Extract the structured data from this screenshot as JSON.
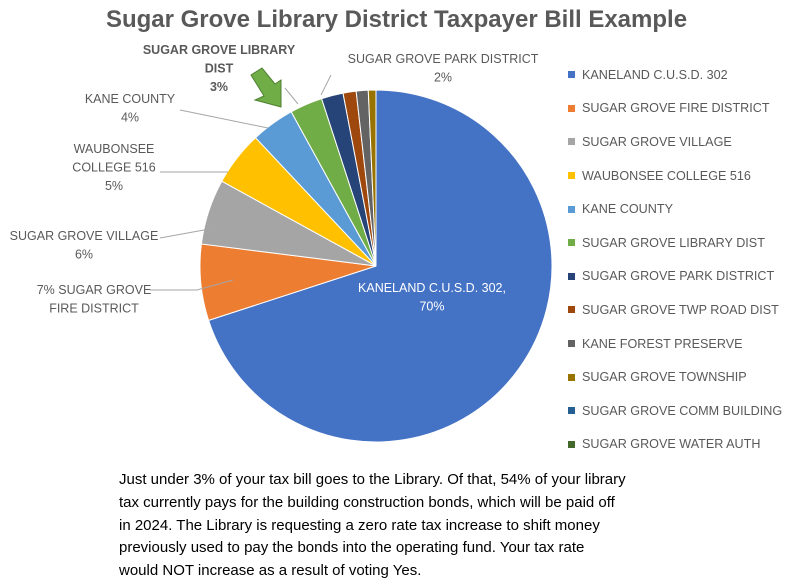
{
  "chart_data": {
    "type": "pie",
    "title": "Sugar Grove Library District Taxpayer Bill Example",
    "slices": [
      {
        "name": "KANELAND C.U.S.D. 302",
        "value": 70,
        "color": "#4472C4"
      },
      {
        "name": "SUGAR GROVE FIRE DISTRICT",
        "value": 7,
        "color": "#ED7D31"
      },
      {
        "name": "SUGAR GROVE VILLAGE",
        "value": 6,
        "color": "#A5A5A5"
      },
      {
        "name": "WAUBONSEE COLLEGE 516",
        "value": 5,
        "color": "#FFC000"
      },
      {
        "name": "KANE COUNTY",
        "value": 4,
        "color": "#5B9BD5"
      },
      {
        "name": "SUGAR GROVE LIBRARY DIST",
        "value": 3,
        "color": "#70AD47"
      },
      {
        "name": "SUGAR GROVE PARK DISTRICT",
        "value": 2,
        "color": "#264478"
      },
      {
        "name": "SUGAR GROVE TWP ROAD DIST",
        "value": 1.2,
        "color": "#9E480E"
      },
      {
        "name": "KANE FOREST PRESERVE",
        "value": 1.1,
        "color": "#636363"
      },
      {
        "name": "SUGAR GROVE TOWNSHIP",
        "value": 0.7,
        "color": "#997300"
      },
      {
        "name": "SUGAR GROVE COMM BUILDING",
        "value": 0.0,
        "color": "#255E91"
      },
      {
        "name": "SUGAR GROVE WATER AUTH",
        "value": 0.0,
        "color": "#43682B"
      }
    ],
    "data_labels": [
      {
        "lines": [
          "KANELAND C.U.S.D. 302,",
          "70%"
        ]
      },
      {
        "lines": [
          "7% SUGAR GROVE",
          "FIRE DISTRICT"
        ]
      },
      {
        "lines": [
          "SUGAR GROVE VILLAGE",
          "6%"
        ]
      },
      {
        "lines": [
          "WAUBONSEE",
          "COLLEGE 516",
          "5%"
        ]
      },
      {
        "lines": [
          "KANE COUNTY",
          "4%"
        ]
      },
      {
        "lines": [
          "SUGAR GROVE LIBRARY",
          "DIST",
          "3%"
        ]
      },
      {
        "lines": [
          "SUGAR GROVE PARK DISTRICT",
          "2%"
        ]
      }
    ],
    "legend_position": "right",
    "annotation": "arrow pointing to library slice",
    "annotation_color": "#70AD47"
  },
  "caption": [
    "Just under 3% of your tax bill goes to the Library. Of that, 54% of your library",
    "tax currently pays for the building construction bonds, which will be paid off",
    "in 2024. The Library is requesting a zero rate tax increase to shift money",
    "previously used to pay the bonds into the operating fund. Your tax rate",
    "would NOT increase as a result of voting Yes."
  ]
}
